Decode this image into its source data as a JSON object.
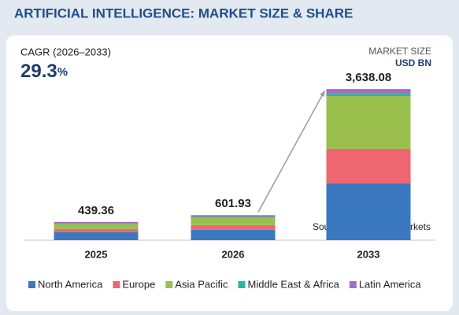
{
  "header": {
    "title": "ARTIFICIAL INTELLIGENCE: MARKET SIZE & SHARE"
  },
  "cagr": {
    "label": "CAGR (2026–2033)",
    "value": "29.3",
    "unit": "%"
  },
  "unit_label": {
    "line1": "MARKET SIZE",
    "line2": "USD BN"
  },
  "source": "Source: MarketsandMarkets",
  "chart_data": {
    "type": "stacked-bar",
    "categories": [
      "2025",
      "2026",
      "2033"
    ],
    "series": [
      {
        "name": "North America",
        "color": "#3a78c0",
        "values": [
          190,
          250,
          1365
        ]
      },
      {
        "name": "Europe",
        "color": "#ee6670",
        "values": [
          80,
          115,
          835
        ]
      },
      {
        "name": "Asia Pacific",
        "color": "#9bbf4c",
        "values": [
          120,
          180,
          1268
        ]
      },
      {
        "name": "Middle East & Africa",
        "color": "#2bb5a5",
        "values": [
          20,
          25,
          76
        ]
      },
      {
        "name": "Latin America",
        "color": "#a56cc0",
        "values": [
          29.36,
          31.93,
          94.08
        ]
      }
    ],
    "totals": [
      439.36,
      601.93,
      3638.08
    ],
    "total_labels": [
      "439.36",
      "601.93",
      "3,638.08"
    ],
    "ylim": [
      0,
      4000
    ]
  }
}
